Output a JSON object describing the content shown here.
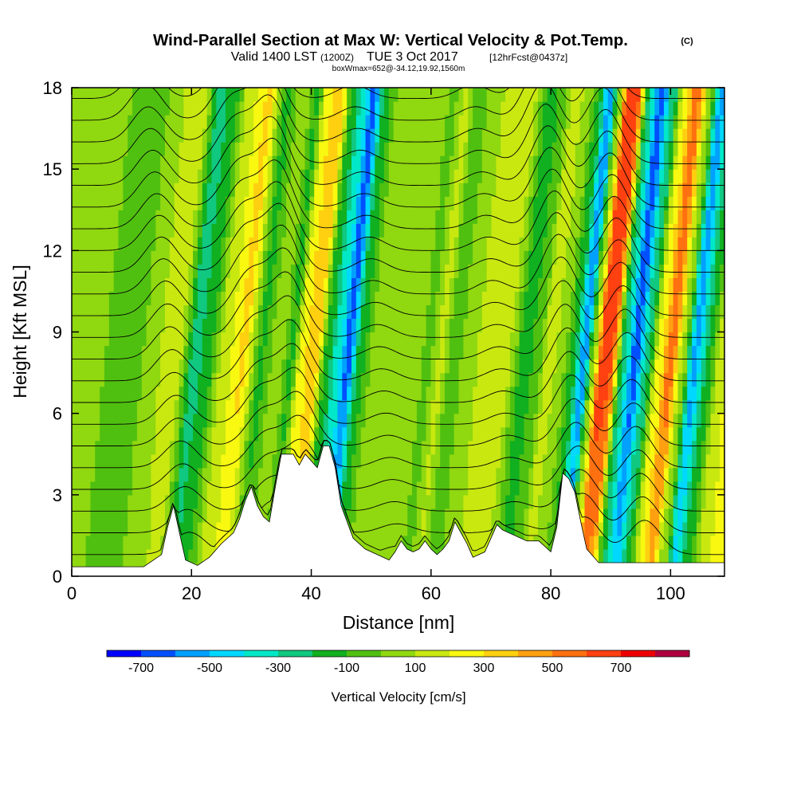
{
  "chart_data": {
    "type": "heatmap",
    "title": "Wind-Parallel Section at Max W: Vertical Velocity & Pot.Temp.",
    "copyright_mark": "(C)",
    "subtitle": {
      "prefix": "Valid 1400 LST",
      "utc": "(1200Z)",
      "date": "TUE 3 Oct 2017",
      "forecast": "[12hrFcst@0437z]"
    },
    "box_info": "boxWmax=652@-34.12,19.92,1560m",
    "xlabel": "Distance [nm]",
    "ylabel": "Height [Kft MSL]",
    "xlim": [
      0,
      109
    ],
    "ylim": [
      0,
      18
    ],
    "x_ticks": [
      "0",
      "20",
      "40",
      "60",
      "80",
      "100"
    ],
    "x_tick_values": [
      0,
      20,
      40,
      60,
      80,
      100
    ],
    "y_ticks": [
      "0",
      "3",
      "6",
      "9",
      "12",
      "15",
      "18"
    ],
    "y_tick_values": [
      0,
      3,
      6,
      9,
      12,
      15,
      18
    ],
    "colorbar": {
      "label": "Vertical Velocity [cm/s]",
      "tick_labels": [
        "-700",
        "-500",
        "-300",
        "-100",
        "100",
        "300",
        "500",
        "700"
      ],
      "bounds": [
        -800,
        800
      ],
      "step": 100,
      "colors": [
        "#0000ff",
        "#0050ff",
        "#00a0ff",
        "#00d8ff",
        "#00e8c8",
        "#10c880",
        "#10b020",
        "#50c010",
        "#90d810",
        "#c8e810",
        "#f8f810",
        "#ffd010",
        "#ffa010",
        "#ff7010",
        "#ff4010",
        "#ee0000",
        "#b00040"
      ]
    },
    "terrain_profile": [
      [
        0,
        0.35
      ],
      [
        12,
        0.35
      ],
      [
        15,
        0.8
      ],
      [
        16,
        1.8
      ],
      [
        17,
        2.6
      ],
      [
        18,
        1.6
      ],
      [
        19,
        0.6
      ],
      [
        21,
        0.4
      ],
      [
        23,
        0.7
      ],
      [
        25,
        1.2
      ],
      [
        27,
        1.6
      ],
      [
        28,
        2.1
      ],
      [
        29,
        2.8
      ],
      [
        30,
        3.3
      ],
      [
        31,
        2.6
      ],
      [
        32,
        2.2
      ],
      [
        33,
        2.0
      ],
      [
        34,
        3.3
      ],
      [
        35,
        4.5
      ],
      [
        37,
        4.5
      ],
      [
        38,
        4.1
      ],
      [
        39,
        4.5
      ],
      [
        41,
        4.0
      ],
      [
        42,
        4.8
      ],
      [
        43,
        4.8
      ],
      [
        44,
        4.0
      ],
      [
        45,
        2.6
      ],
      [
        47,
        1.4
      ],
      [
        49,
        1.0
      ],
      [
        51,
        0.8
      ],
      [
        53,
        0.6
      ],
      [
        54,
        0.9
      ],
      [
        55,
        1.3
      ],
      [
        56,
        1.0
      ],
      [
        57,
        0.9
      ],
      [
        58,
        1.0
      ],
      [
        59,
        1.3
      ],
      [
        60,
        1.0
      ],
      [
        61,
        0.8
      ],
      [
        62,
        1.0
      ],
      [
        63,
        1.3
      ],
      [
        64,
        2.0
      ],
      [
        65,
        1.6
      ],
      [
        66,
        1.2
      ],
      [
        67,
        0.7
      ],
      [
        69,
        0.9
      ],
      [
        71,
        1.9
      ],
      [
        72,
        1.7
      ],
      [
        74,
        1.5
      ],
      [
        76,
        1.3
      ],
      [
        78,
        1.3
      ],
      [
        80,
        0.9
      ],
      [
        81,
        1.8
      ],
      [
        82,
        3.8
      ],
      [
        83,
        3.6
      ],
      [
        84,
        3.1
      ],
      [
        85,
        2.0
      ],
      [
        86,
        1.0
      ],
      [
        88,
        0.5
      ],
      [
        109,
        0.5
      ]
    ],
    "w_bands": [
      {
        "x": 2,
        "w": 0
      },
      {
        "x": 7,
        "w": -60
      },
      {
        "x": 10,
        "w": 90
      },
      {
        "x": 14,
        "w": 150
      },
      {
        "x": 17,
        "w": -250
      },
      {
        "x": 19,
        "w": -150
      },
      {
        "x": 22,
        "w": 160
      },
      {
        "x": 25,
        "w": 320
      },
      {
        "x": 28,
        "w": -120
      },
      {
        "x": 31,
        "w": 80
      },
      {
        "x": 33,
        "w": -120
      },
      {
        "x": 35,
        "w": 280
      },
      {
        "x": 37,
        "w": 400
      },
      {
        "x": 39,
        "w": -150
      },
      {
        "x": 41,
        "w": -380
      },
      {
        "x": 42.5,
        "w": -650
      },
      {
        "x": 44.5,
        "w": -150
      },
      {
        "x": 47,
        "w": 50
      },
      {
        "x": 50,
        "w": 100
      },
      {
        "x": 53,
        "w": 60
      },
      {
        "x": 56,
        "w": -20
      },
      {
        "x": 58,
        "w": 130
      },
      {
        "x": 60,
        "w": -60
      },
      {
        "x": 63,
        "w": 60
      },
      {
        "x": 66,
        "w": 180
      },
      {
        "x": 69,
        "w": 130
      },
      {
        "x": 72,
        "w": -150
      },
      {
        "x": 74,
        "w": -80
      },
      {
        "x": 76,
        "w": 150
      },
      {
        "x": 78,
        "w": 80
      },
      {
        "x": 80,
        "w": -120
      },
      {
        "x": 82,
        "w": -580
      },
      {
        "x": 83.5,
        "w": 60
      },
      {
        "x": 85,
        "w": 680
      },
      {
        "x": 86.5,
        "w": 620
      },
      {
        "x": 88.5,
        "w": -250
      },
      {
        "x": 90.5,
        "w": -650
      },
      {
        "x": 92.5,
        "w": -250
      },
      {
        "x": 94.5,
        "w": 250
      },
      {
        "x": 96.5,
        "w": 560
      },
      {
        "x": 98.5,
        "w": 80
      },
      {
        "x": 100.5,
        "w": -550
      },
      {
        "x": 102.5,
        "w": -200
      },
      {
        "x": 105,
        "w": 180
      },
      {
        "x": 108,
        "w": 330
      }
    ],
    "isentrope_levels": [
      0.8,
      1.6,
      2.4,
      3.2,
      4.0,
      4.8,
      5.6,
      6.4,
      7.2,
      8.0,
      8.8,
      9.6,
      10.4,
      11.2,
      12.0,
      12.8,
      13.6,
      14.4,
      15.2,
      16.0,
      16.8,
      17.6,
      18.4,
      19.2
    ],
    "isentrope_waves": [
      {
        "x": 20,
        "amp": 1.3
      },
      {
        "x": 34,
        "amp": 1.6
      },
      {
        "x": 40,
        "amp": 2.4
      },
      {
        "x": 55,
        "amp": 0.5
      },
      {
        "x": 75,
        "amp": 0.5
      },
      {
        "x": 86,
        "amp": 2.2
      },
      {
        "x": 96,
        "amp": 2.0
      }
    ]
  }
}
